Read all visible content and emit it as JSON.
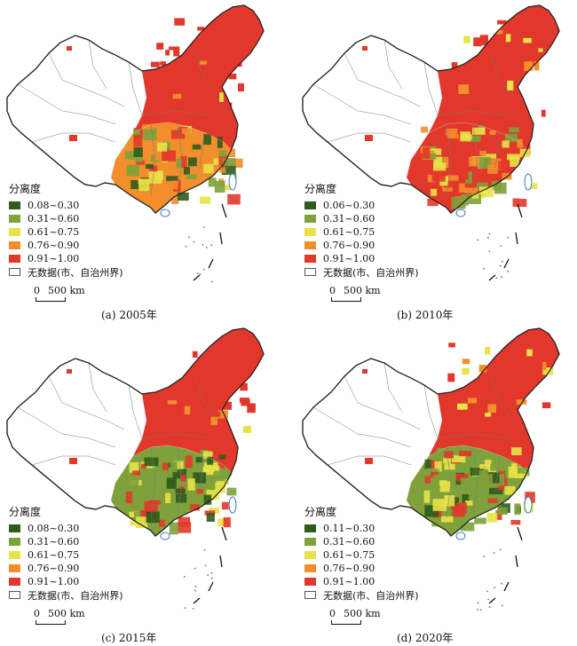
{
  "colors": {
    "dark_green": "#2f5b1d",
    "green": "#7ea13b",
    "yellow": "#e8e348",
    "orange": "#f28e2b",
    "red": "#e2382b",
    "nodata": "#ffffff"
  },
  "panels": [
    {
      "caption": "(a) 2005年",
      "legend_title": "分离度",
      "legend": [
        {
          "label": "0.08~0.30",
          "color": "#2f5b1d"
        },
        {
          "label": "0.31~0.60",
          "color": "#7ea13b"
        },
        {
          "label": "0.61~0.75",
          "color": "#e8e348"
        },
        {
          "label": "0.76~0.90",
          "color": "#f28e2b"
        },
        {
          "label": "0.91~1.00",
          "color": "#e2382b"
        },
        {
          "label": "无数据(市、自治州界)",
          "color": "#ffffff"
        }
      ],
      "scale_zero": "0",
      "scale_label": "500 km",
      "dominant_south": "mixed"
    },
    {
      "caption": "(b) 2010年",
      "legend_title": "分离度",
      "legend": [
        {
          "label": "0.06~0.30",
          "color": "#2f5b1d"
        },
        {
          "label": "0.31~0.60",
          "color": "#7ea13b"
        },
        {
          "label": "0.61~0.75",
          "color": "#e8e348"
        },
        {
          "label": "0.76~0.90",
          "color": "#f28e2b"
        },
        {
          "label": "0.91~1.00",
          "color": "#e2382b"
        },
        {
          "label": "无数据(市、自治州界)",
          "color": "#ffffff"
        }
      ],
      "scale_zero": "0",
      "scale_label": "500 km",
      "dominant_south": "red-orange"
    },
    {
      "caption": "(c) 2015年",
      "legend_title": "分离度",
      "legend": [
        {
          "label": "0.08~0.30",
          "color": "#2f5b1d"
        },
        {
          "label": "0.31~0.60",
          "color": "#7ea13b"
        },
        {
          "label": "0.61~0.75",
          "color": "#e8e348"
        },
        {
          "label": "0.76~0.90",
          "color": "#f28e2b"
        },
        {
          "label": "0.91~1.00",
          "color": "#e2382b"
        },
        {
          "label": "无数据(市、自治州界)",
          "color": "#ffffff"
        }
      ],
      "scale_zero": "0",
      "scale_label": "500 km",
      "dominant_south": "green"
    },
    {
      "caption": "(d) 2020年",
      "legend_title": "分离度",
      "legend": [
        {
          "label": "0.11~0.30",
          "color": "#2f5b1d"
        },
        {
          "label": "0.31~0.60",
          "color": "#7ea13b"
        },
        {
          "label": "0.61~0.75",
          "color": "#e8e348"
        },
        {
          "label": "0.76~0.90",
          "color": "#f28e2b"
        },
        {
          "label": "0.91~1.00",
          "color": "#e2382b"
        },
        {
          "label": "无数据(市、自治州界)",
          "color": "#ffffff"
        }
      ],
      "scale_zero": "0",
      "scale_label": "500 km",
      "dominant_south": "green"
    }
  ]
}
